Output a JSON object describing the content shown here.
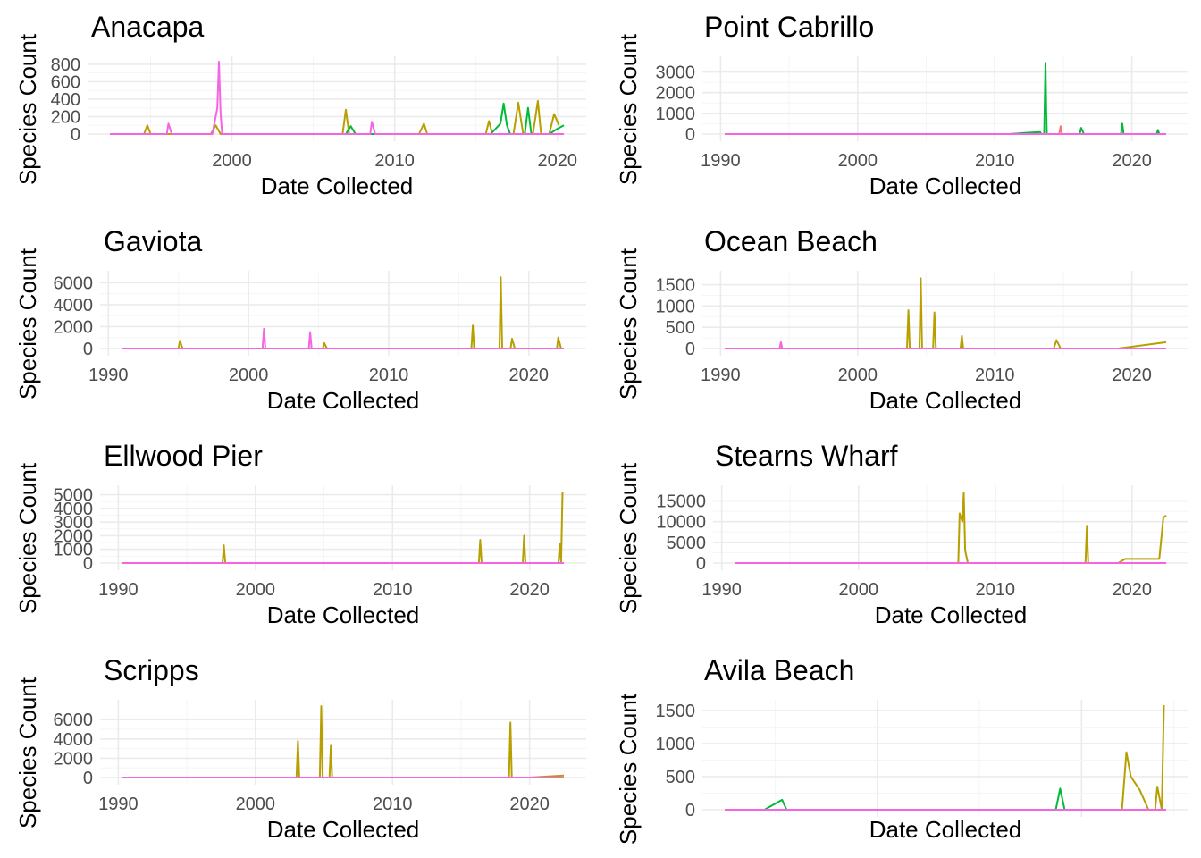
{
  "series_colors": [
    "#F8766D",
    "#B79F00",
    "#00BA38",
    "#619CFF",
    "#F564E3"
  ],
  "chart_data": [
    {
      "type": "line",
      "title": "Anacapa",
      "xlabel": "Date Collected",
      "ylabel": "Species Count",
      "xlim": [
        1992.5,
        2020.4
      ],
      "ylim": [
        0,
        830
      ],
      "x_ticks": [
        2000,
        2010,
        2020
      ],
      "y_ticks": [
        0,
        200,
        400,
        600,
        800
      ],
      "series": [
        {
          "color": "#B79F00",
          "points": [
            [
              1992.5,
              0
            ],
            [
              1994.6,
              0
            ],
            [
              1994.8,
              100
            ],
            [
              1995.0,
              0
            ],
            [
              1998.7,
              0
            ],
            [
              1999.0,
              100
            ],
            [
              1999.3,
              0
            ],
            [
              2006.8,
              0
            ],
            [
              2007.0,
              280
            ],
            [
              2007.2,
              0
            ],
            [
              2011.5,
              0
            ],
            [
              2011.8,
              120
            ],
            [
              2012.0,
              0
            ],
            [
              2015.6,
              0
            ],
            [
              2015.8,
              150
            ],
            [
              2016.0,
              0
            ],
            [
              2017.3,
              0
            ],
            [
              2017.6,
              360
            ],
            [
              2017.9,
              0
            ],
            [
              2018.5,
              0
            ],
            [
              2018.8,
              380
            ],
            [
              2019.0,
              0
            ],
            [
              2019.5,
              0
            ],
            [
              2019.8,
              230
            ],
            [
              2020.1,
              100
            ]
          ]
        },
        {
          "color": "#00BA38",
          "points": [
            [
              2007.0,
              0
            ],
            [
              2007.3,
              90
            ],
            [
              2007.6,
              0
            ],
            [
              2015.9,
              0
            ],
            [
              2016.5,
              120
            ],
            [
              2016.7,
              350
            ],
            [
              2016.9,
              100
            ],
            [
              2017.1,
              0
            ],
            [
              2018.0,
              0
            ],
            [
              2018.2,
              300
            ],
            [
              2018.4,
              0
            ],
            [
              2019.5,
              0
            ],
            [
              2020.0,
              60
            ],
            [
              2020.4,
              100
            ]
          ]
        },
        {
          "color": "#F564E3",
          "points": [
            [
              1992.5,
              0
            ],
            [
              1996.0,
              0
            ],
            [
              1996.1,
              120
            ],
            [
              1996.3,
              0
            ],
            [
              1998.8,
              0
            ],
            [
              1999.1,
              300
            ],
            [
              1999.2,
              830
            ],
            [
              1999.3,
              250
            ],
            [
              1999.4,
              0
            ],
            [
              2008.5,
              0
            ],
            [
              2008.6,
              140
            ],
            [
              2008.8,
              0
            ],
            [
              2020.4,
              0
            ]
          ]
        }
      ]
    },
    {
      "type": "line",
      "title": "Point Cabrillo",
      "xlabel": "Date Collected",
      "ylabel": "Species Count",
      "xlim": [
        1990.3,
        2022.5
      ],
      "ylim": [
        0,
        3500
      ],
      "x_ticks": [
        1990,
        2000,
        2010,
        2020
      ],
      "y_ticks": [
        0,
        1000,
        2000,
        3000
      ],
      "series": [
        {
          "color": "#F8766D",
          "points": [
            [
              2011.0,
              0
            ],
            [
              2014.7,
              0
            ],
            [
              2014.8,
              380
            ],
            [
              2014.9,
              0
            ],
            [
              2022.5,
              0
            ]
          ]
        },
        {
          "color": "#00BA38",
          "points": [
            [
              2011.0,
              0
            ],
            [
              2013.3,
              100
            ],
            [
              2013.4,
              0
            ],
            [
              2013.6,
              0
            ],
            [
              2013.7,
              3450
            ],
            [
              2013.75,
              1200
            ],
            [
              2013.8,
              0
            ],
            [
              2016.2,
              0
            ],
            [
              2016.3,
              300
            ],
            [
              2016.5,
              0
            ],
            [
              2019.2,
              0
            ],
            [
              2019.3,
              500
            ],
            [
              2019.4,
              0
            ],
            [
              2021.8,
              0
            ],
            [
              2021.9,
              200
            ],
            [
              2022.0,
              0
            ]
          ]
        },
        {
          "color": "#F564E3",
          "points": [
            [
              1990.3,
              0
            ],
            [
              2022.5,
              0
            ]
          ]
        }
      ]
    },
    {
      "type": "line",
      "title": "Gaviota",
      "xlabel": "Date Collected",
      "ylabel": "Species Count",
      "xlim": [
        1991.0,
        2022.5
      ],
      "ylim": [
        0,
        6600
      ],
      "x_ticks": [
        1990,
        2000,
        2010,
        2020
      ],
      "y_ticks": [
        0,
        2000,
        4000,
        6000
      ],
      "series": [
        {
          "color": "#B79F00",
          "points": [
            [
              1991,
              0
            ],
            [
              1995.0,
              0
            ],
            [
              1995.1,
              700
            ],
            [
              1995.3,
              0
            ],
            [
              2005.3,
              0
            ],
            [
              2005.4,
              500
            ],
            [
              2005.6,
              0
            ],
            [
              2015.9,
              0
            ],
            [
              2016.0,
              2100
            ],
            [
              2016.1,
              0
            ],
            [
              2017.9,
              0
            ],
            [
              2018.0,
              6500
            ],
            [
              2018.1,
              0
            ],
            [
              2018.7,
              0
            ],
            [
              2018.8,
              900
            ],
            [
              2019.0,
              0
            ],
            [
              2022.0,
              0
            ],
            [
              2022.1,
              1000
            ],
            [
              2022.3,
              0
            ]
          ]
        },
        {
          "color": "#F564E3",
          "points": [
            [
              1991,
              0
            ],
            [
              2001.0,
              0
            ],
            [
              2001.1,
              1800
            ],
            [
              2001.2,
              0
            ],
            [
              2004.3,
              0
            ],
            [
              2004.4,
              1500
            ],
            [
              2004.5,
              0
            ],
            [
              2022.5,
              0
            ]
          ]
        }
      ]
    },
    {
      "type": "line",
      "title": "Ocean Beach",
      "xlabel": "Date Collected",
      "ylabel": "Species Count",
      "xlim": [
        1990.3,
        2022.5
      ],
      "ylim": [
        0,
        1700
      ],
      "x_ticks": [
        1990,
        2000,
        2010,
        2020
      ],
      "y_ticks": [
        0,
        500,
        1000,
        1500
      ],
      "series": [
        {
          "color": "#B79F00",
          "points": [
            [
              1990.3,
              0
            ],
            [
              2003.6,
              0
            ],
            [
              2003.7,
              900
            ],
            [
              2003.8,
              0
            ],
            [
              2004.5,
              0
            ],
            [
              2004.6,
              1650
            ],
            [
              2004.7,
              0
            ],
            [
              2005.5,
              0
            ],
            [
              2005.6,
              850
            ],
            [
              2005.7,
              0
            ],
            [
              2007.5,
              0
            ],
            [
              2007.6,
              300
            ],
            [
              2007.7,
              0
            ],
            [
              2014.3,
              0
            ],
            [
              2014.5,
              200
            ],
            [
              2014.8,
              0
            ],
            [
              2019.0,
              0
            ],
            [
              2022.5,
              150
            ]
          ]
        },
        {
          "color": "#F564E3",
          "points": [
            [
              1990.3,
              0
            ],
            [
              1994.3,
              0
            ],
            [
              1994.4,
              150
            ],
            [
              1994.5,
              0
            ],
            [
              2022.5,
              0
            ]
          ]
        }
      ]
    },
    {
      "type": "line",
      "title": "Ellwood Pier",
      "xlabel": "Date Collected",
      "ylabel": "Species Count",
      "xlim": [
        1990.3,
        2022.5
      ],
      "ylim": [
        0,
        5300
      ],
      "x_ticks": [
        1990,
        2000,
        2010,
        2020
      ],
      "y_ticks": [
        0,
        1000,
        2000,
        3000,
        4000,
        5000
      ],
      "series": [
        {
          "color": "#B79F00",
          "points": [
            [
              1990.3,
              0
            ],
            [
              1997.6,
              0
            ],
            [
              1997.7,
              1300
            ],
            [
              1997.8,
              0
            ],
            [
              2016.3,
              0
            ],
            [
              2016.4,
              1700
            ],
            [
              2016.5,
              0
            ],
            [
              2019.5,
              0
            ],
            [
              2019.6,
              2000
            ],
            [
              2019.7,
              0
            ],
            [
              2022.1,
              0
            ],
            [
              2022.2,
              1400
            ],
            [
              2022.3,
              0
            ],
            [
              2022.4,
              5200
            ]
          ]
        },
        {
          "color": "#F564E3",
          "points": [
            [
              1990.3,
              0
            ],
            [
              2022.5,
              0
            ]
          ]
        }
      ]
    },
    {
      "type": "line",
      "title": "Stearns Wharf",
      "xlabel": "Date Collected",
      "ylabel": "Species Count",
      "xlim": [
        1991.0,
        2022.5
      ],
      "ylim": [
        0,
        17500
      ],
      "x_ticks": [
        1990,
        2000,
        2010,
        2020
      ],
      "y_ticks": [
        0,
        5000,
        10000,
        15000
      ],
      "series": [
        {
          "color": "#B79F00",
          "points": [
            [
              1991,
              0
            ],
            [
              2007.3,
              0
            ],
            [
              2007.4,
              12000
            ],
            [
              2007.6,
              10000
            ],
            [
              2007.7,
              17000
            ],
            [
              2007.8,
              3000
            ],
            [
              2008.0,
              0
            ],
            [
              2016.6,
              0
            ],
            [
              2016.7,
              9000
            ],
            [
              2016.8,
              0
            ],
            [
              2019.0,
              0
            ],
            [
              2019.5,
              1000
            ],
            [
              2022.0,
              1000
            ],
            [
              2022.3,
              11000
            ],
            [
              2022.5,
              11500
            ]
          ]
        },
        {
          "color": "#F564E3",
          "points": [
            [
              1991,
              0
            ],
            [
              2022.5,
              0
            ]
          ]
        }
      ]
    },
    {
      "type": "line",
      "title": "Scripps",
      "xlabel": "Date Collected",
      "ylabel": "Species Count",
      "xlim": [
        1990.3,
        2022.5
      ],
      "ylim": [
        0,
        7500
      ],
      "x_ticks": [
        1990,
        2000,
        2010,
        2020
      ],
      "y_ticks": [
        0,
        2000,
        4000,
        6000
      ],
      "series": [
        {
          "color": "#B79F00",
          "points": [
            [
              1990.3,
              0
            ],
            [
              2003.0,
              0
            ],
            [
              2003.1,
              3800
            ],
            [
              2003.2,
              0
            ],
            [
              2004.7,
              0
            ],
            [
              2004.8,
              7400
            ],
            [
              2004.9,
              0
            ],
            [
              2005.4,
              0
            ],
            [
              2005.5,
              3300
            ],
            [
              2005.6,
              0
            ],
            [
              2018.5,
              0
            ],
            [
              2018.6,
              5700
            ],
            [
              2018.7,
              0
            ],
            [
              2020.0,
              0
            ],
            [
              2022.5,
              200
            ]
          ]
        },
        {
          "color": "#F564E3",
          "points": [
            [
              1990.3,
              0
            ],
            [
              2022.5,
              0
            ]
          ]
        }
      ]
    },
    {
      "type": "line",
      "title": "Avila Beach",
      "xlabel": "Date Collected",
      "ylabel": "Species Count",
      "ylim": [
        0,
        1580
      ],
      "y_ticks": [
        0,
        500,
        1000,
        1500
      ],
      "series": [
        {
          "color": "#B79F00",
          "points": [
            [
              0.83,
              0
            ],
            [
              0.9,
              0
            ],
            [
              0.91,
              870
            ],
            [
              0.92,
              500
            ],
            [
              0.94,
              300
            ],
            [
              0.96,
              0
            ],
            [
              0.975,
              0
            ],
            [
              0.98,
              350
            ],
            [
              0.99,
              0
            ],
            [
              0.995,
              1580
            ]
          ]
        },
        {
          "color": "#00BA38",
          "points": [
            [
              0.0,
              0
            ],
            [
              0.09,
              0
            ],
            [
              0.13,
              150
            ],
            [
              0.14,
              0
            ],
            [
              0.75,
              0
            ],
            [
              0.76,
              320
            ],
            [
              0.77,
              0
            ]
          ]
        },
        {
          "color": "#F564E3",
          "points": [
            [
              0.0,
              0
            ],
            [
              1.0,
              0
            ]
          ]
        }
      ]
    }
  ]
}
